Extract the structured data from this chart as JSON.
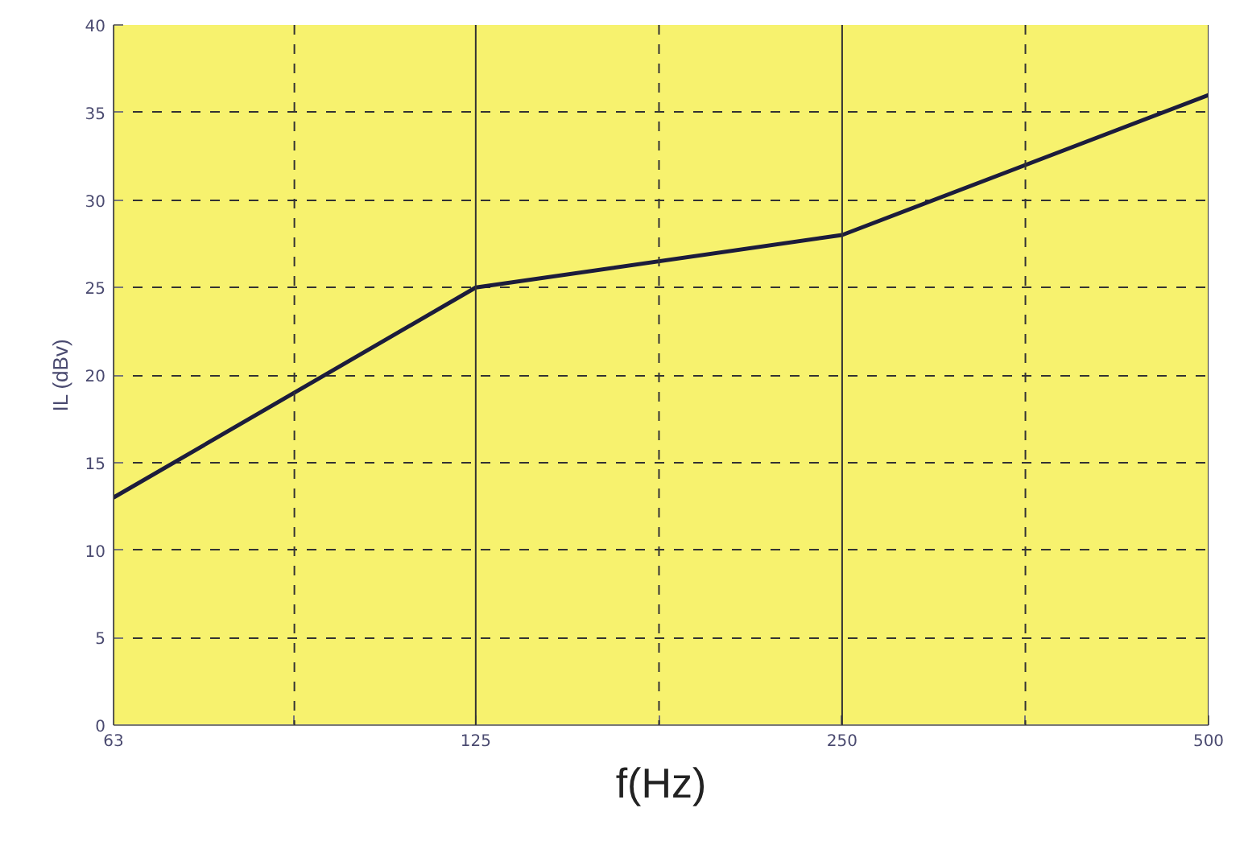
{
  "chart_data": {
    "type": "line",
    "xlabel": "f(Hz)",
    "ylabel": "IL (dBv)",
    "log": "x",
    "x": [
      63,
      125,
      250,
      500
    ],
    "series": [
      {
        "color": "#1c1c3c",
        "values": [
          13,
          25,
          28,
          36
        ]
      }
    ],
    "xlim": [
      63,
      500
    ],
    "xticks": [
      63,
      {
        "value": 88.7,
        "label": null
      },
      125,
      {
        "value": 176.8,
        "label": null
      },
      250,
      {
        "value": 353.6,
        "label": null
      },
      500
    ],
    "ylim": [
      0,
      40
    ],
    "yticks": [
      0,
      5,
      10,
      15,
      20,
      25,
      30,
      35,
      40
    ],
    "grid": true,
    "marker": "none",
    "line_style": "solid"
  }
}
